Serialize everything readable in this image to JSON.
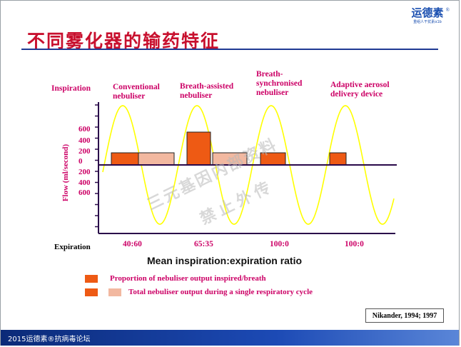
{
  "slide": {
    "title": "不同雾化器的输药特征",
    "logo": {
      "name": "运德素",
      "registered": "®",
      "subtitle": "重组人干扰素α1b"
    },
    "footer": "2015运德素®抗病毒论坛"
  },
  "chart": {
    "inspiration_label": "Inspiration",
    "expiration_label": "Expiration",
    "y_axis_title": "Flow (ml/second)",
    "y_ticks": [
      "600",
      "400",
      "200",
      "0",
      "200",
      "400",
      "600"
    ],
    "x_axis_title": "Mean inspiration:expiration ratio",
    "nebulisers": [
      {
        "name_line1": "Conventional",
        "name_line2": "nebuliser",
        "name_line3": "",
        "ratio": "40:60",
        "inspired_fraction": 0.4
      },
      {
        "name_line1": "Breath-assisted",
        "name_line2": "nebuliser",
        "name_line3": "",
        "ratio": "65:35",
        "inspired_fraction": 0.65
      },
      {
        "name_line1": "Breath-",
        "name_line2": "synchronised",
        "name_line3": "nebuliser",
        "ratio": "100:0",
        "inspired_fraction": 1.0
      },
      {
        "name_line1": "Adaptive aerosol",
        "name_line2": "delivery device",
        "name_line3": "",
        "ratio": "100:0",
        "inspired_fraction": 1.0
      }
    ],
    "colors": {
      "inspired": "#ee5a14",
      "total": "#f2b8a0",
      "flow_curve": "#ffff00",
      "axis": "#2a0a4a"
    }
  },
  "legend": [
    {
      "text": "Proportion of nebuliser output inspired/breath"
    },
    {
      "text": "Total  nebuliser output during a single respiratory cycle"
    }
  ],
  "citation": "Nikander, 1994; 1997",
  "watermark": {
    "line1": "三元基因内部资料",
    "line2": "禁止外传"
  }
}
